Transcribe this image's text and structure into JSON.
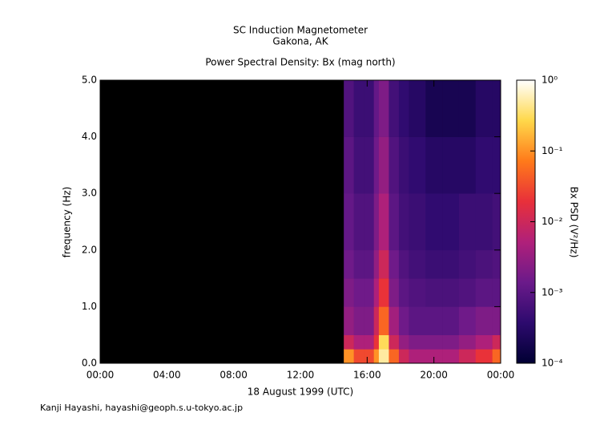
{
  "chart_data": {
    "type": "spectrogram",
    "title": "SC Induction Magnetometer",
    "subtitle": "Gakona, AK",
    "plot_title": "Power Spectral Density: Bx (mag north)",
    "xlabel": "18 August 1999 (UTC)",
    "ylabel": "frequency (Hz)",
    "colorbar_label": "Bx PSD (V²/Hz)",
    "footer": "Kanji Hayashi, hayashi@geoph.s.u-tokyo.ac.jp",
    "background": "#000000",
    "colormap": [
      "#000033",
      "#2d0a6e",
      "#6b1a8a",
      "#b0207a",
      "#e8303a",
      "#ff7a1a",
      "#ffd84a",
      "#ffffff"
    ],
    "xlim": [
      0,
      24
    ],
    "xticks": [
      {
        "value": 0,
        "label": "00:00"
      },
      {
        "value": 4,
        "label": "04:00"
      },
      {
        "value": 8,
        "label": "08:00"
      },
      {
        "value": 12,
        "label": "12:00"
      },
      {
        "value": 16,
        "label": "16:00"
      },
      {
        "value": 20,
        "label": "20:00"
      },
      {
        "value": 24,
        "label": "00:00"
      }
    ],
    "ylim": [
      0,
      5
    ],
    "yticks": [
      {
        "value": 0,
        "label": "0.0"
      },
      {
        "value": 1,
        "label": "1.0"
      },
      {
        "value": 2,
        "label": "2.0"
      },
      {
        "value": 3,
        "label": "3.0"
      },
      {
        "value": 4,
        "label": "4.0"
      },
      {
        "value": 5,
        "label": "5.0"
      }
    ],
    "clim": [
      0.0001,
      1
    ],
    "clog": true,
    "cticks": [
      {
        "value": 0.0001,
        "label": "10⁻⁴"
      },
      {
        "value": 0.001,
        "label": "10⁻³"
      },
      {
        "value": 0.01,
        "label": "10⁻²"
      },
      {
        "value": 0.1,
        "label": "10⁻¹"
      },
      {
        "value": 1,
        "label": "10⁰"
      }
    ],
    "xbins": [
      14.6,
      15.2,
      15.8,
      16.4,
      16.7,
      17.3,
      17.9,
      18.5,
      19.5,
      20.5,
      21.5,
      22.5,
      23.5,
      24
    ],
    "ybins": [
      0,
      0.25,
      0.5,
      1,
      1.5,
      2,
      3,
      4,
      5
    ],
    "values": [
      [
        0.1,
        0.03,
        0.03,
        0.1,
        0.5,
        0.05,
        0.01,
        0.005,
        0.005,
        0.005,
        0.01,
        0.02,
        0.05
      ],
      [
        0.01,
        0.005,
        0.005,
        0.02,
        0.3,
        0.01,
        0.003,
        0.002,
        0.002,
        0.002,
        0.003,
        0.005,
        0.01
      ],
      [
        0.003,
        0.002,
        0.002,
        0.01,
        0.05,
        0.004,
        0.0015,
        0.001,
        0.001,
        0.001,
        0.0015,
        0.002,
        0.002
      ],
      [
        0.002,
        0.0015,
        0.0015,
        0.005,
        0.02,
        0.002,
        0.001,
        0.0008,
        0.0007,
        0.0007,
        0.0008,
        0.001,
        0.001
      ],
      [
        0.0015,
        0.001,
        0.001,
        0.003,
        0.01,
        0.0015,
        0.0008,
        0.0006,
        0.0005,
        0.0005,
        0.0006,
        0.0007,
        0.0008
      ],
      [
        0.0012,
        0.0008,
        0.0008,
        0.002,
        0.005,
        0.001,
        0.0006,
        0.0005,
        0.0004,
        0.0004,
        0.0005,
        0.0005,
        0.0006
      ],
      [
        0.001,
        0.0006,
        0.0006,
        0.0015,
        0.003,
        0.0008,
        0.0005,
        0.0004,
        0.0003,
        0.0003,
        0.0003,
        0.0004,
        0.0004
      ],
      [
        0.0008,
        0.0005,
        0.0005,
        0.0012,
        0.002,
        0.0006,
        0.0004,
        0.0003,
        0.0002,
        0.0002,
        0.0002,
        0.0003,
        0.0003
      ]
    ]
  }
}
